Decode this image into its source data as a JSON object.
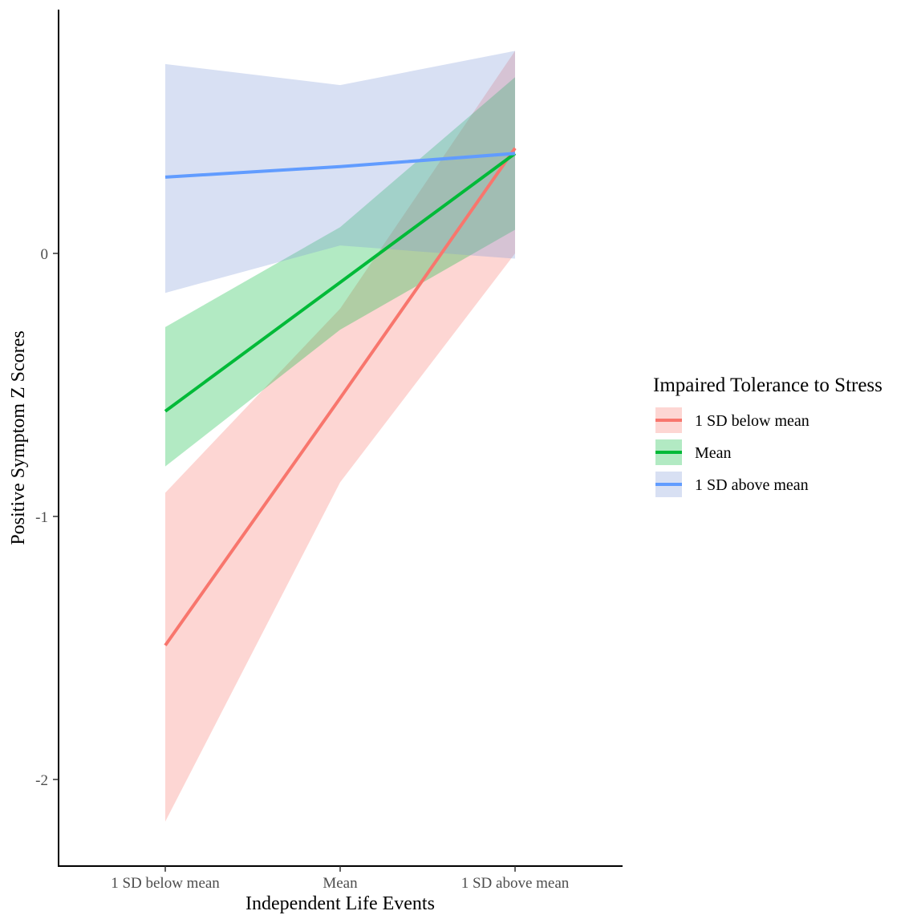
{
  "chart_data": {
    "type": "line",
    "title": "",
    "xlabel": "Independent Life Events",
    "ylabel": "Positive Symptom Z Scores",
    "categories": [
      "1 SD below mean",
      "Mean",
      "1 SD above mean"
    ],
    "ylim": [
      -2.3,
      0.95
    ],
    "yticks": [
      {
        "value": -2,
        "label": "-2"
      },
      {
        "value": -1,
        "label": "-1"
      },
      {
        "value": 0,
        "label": "0"
      }
    ],
    "grid": false,
    "legend": {
      "title": "Impaired Tolerance to Stress",
      "placement": "right"
    },
    "series": [
      {
        "name": "1 SD below mean",
        "color": "#F8766D",
        "fill": "#F8766D",
        "values": [
          -1.49,
          -0.55,
          0.4
        ],
        "lower": [
          -2.16,
          -0.87,
          0.0
        ],
        "upper": [
          -0.91,
          -0.21,
          0.77
        ]
      },
      {
        "name": "Mean",
        "color": "#00BA38",
        "fill": "#00BA38",
        "values": [
          -0.6,
          -0.11,
          0.38
        ],
        "lower": [
          -0.81,
          -0.29,
          0.09
        ],
        "upper": [
          -0.28,
          0.1,
          0.67
        ]
      },
      {
        "name": "1 SD above mean",
        "color": "#619CFF",
        "fill": "#7F97D8",
        "values": [
          0.29,
          0.33,
          0.38
        ],
        "lower": [
          -0.15,
          0.03,
          -0.02
        ],
        "upper": [
          0.72,
          0.64,
          0.77
        ]
      }
    ]
  }
}
